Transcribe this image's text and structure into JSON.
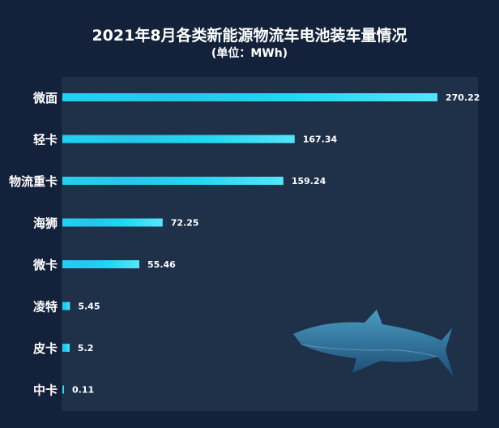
{
  "chart_data": {
    "type": "bar",
    "orientation": "horizontal",
    "title": "2021年8月各类新能源物流车电池装车量情况",
    "subtitle": "(单位：MWh)",
    "categories": [
      "微面",
      "轻卡",
      "物流重卡",
      "海狮",
      "微卡",
      "凌特",
      "皮卡",
      "中卡"
    ],
    "values": [
      270.22,
      167.34,
      159.24,
      72.25,
      55.46,
      5.45,
      5.2,
      0.11
    ],
    "value_labels": [
      "270.22",
      "167.34",
      "159.24",
      "72.25",
      "55.46",
      "5.45",
      "5.2",
      "0.11"
    ],
    "xlabel": "",
    "ylabel": "",
    "xlim": [
      0,
      300
    ],
    "grid": false,
    "colors": {
      "bar": "#1fd3f0",
      "bar_light": "#5fe6fa",
      "background": "#13213a",
      "panel": "#1f3049"
    }
  }
}
